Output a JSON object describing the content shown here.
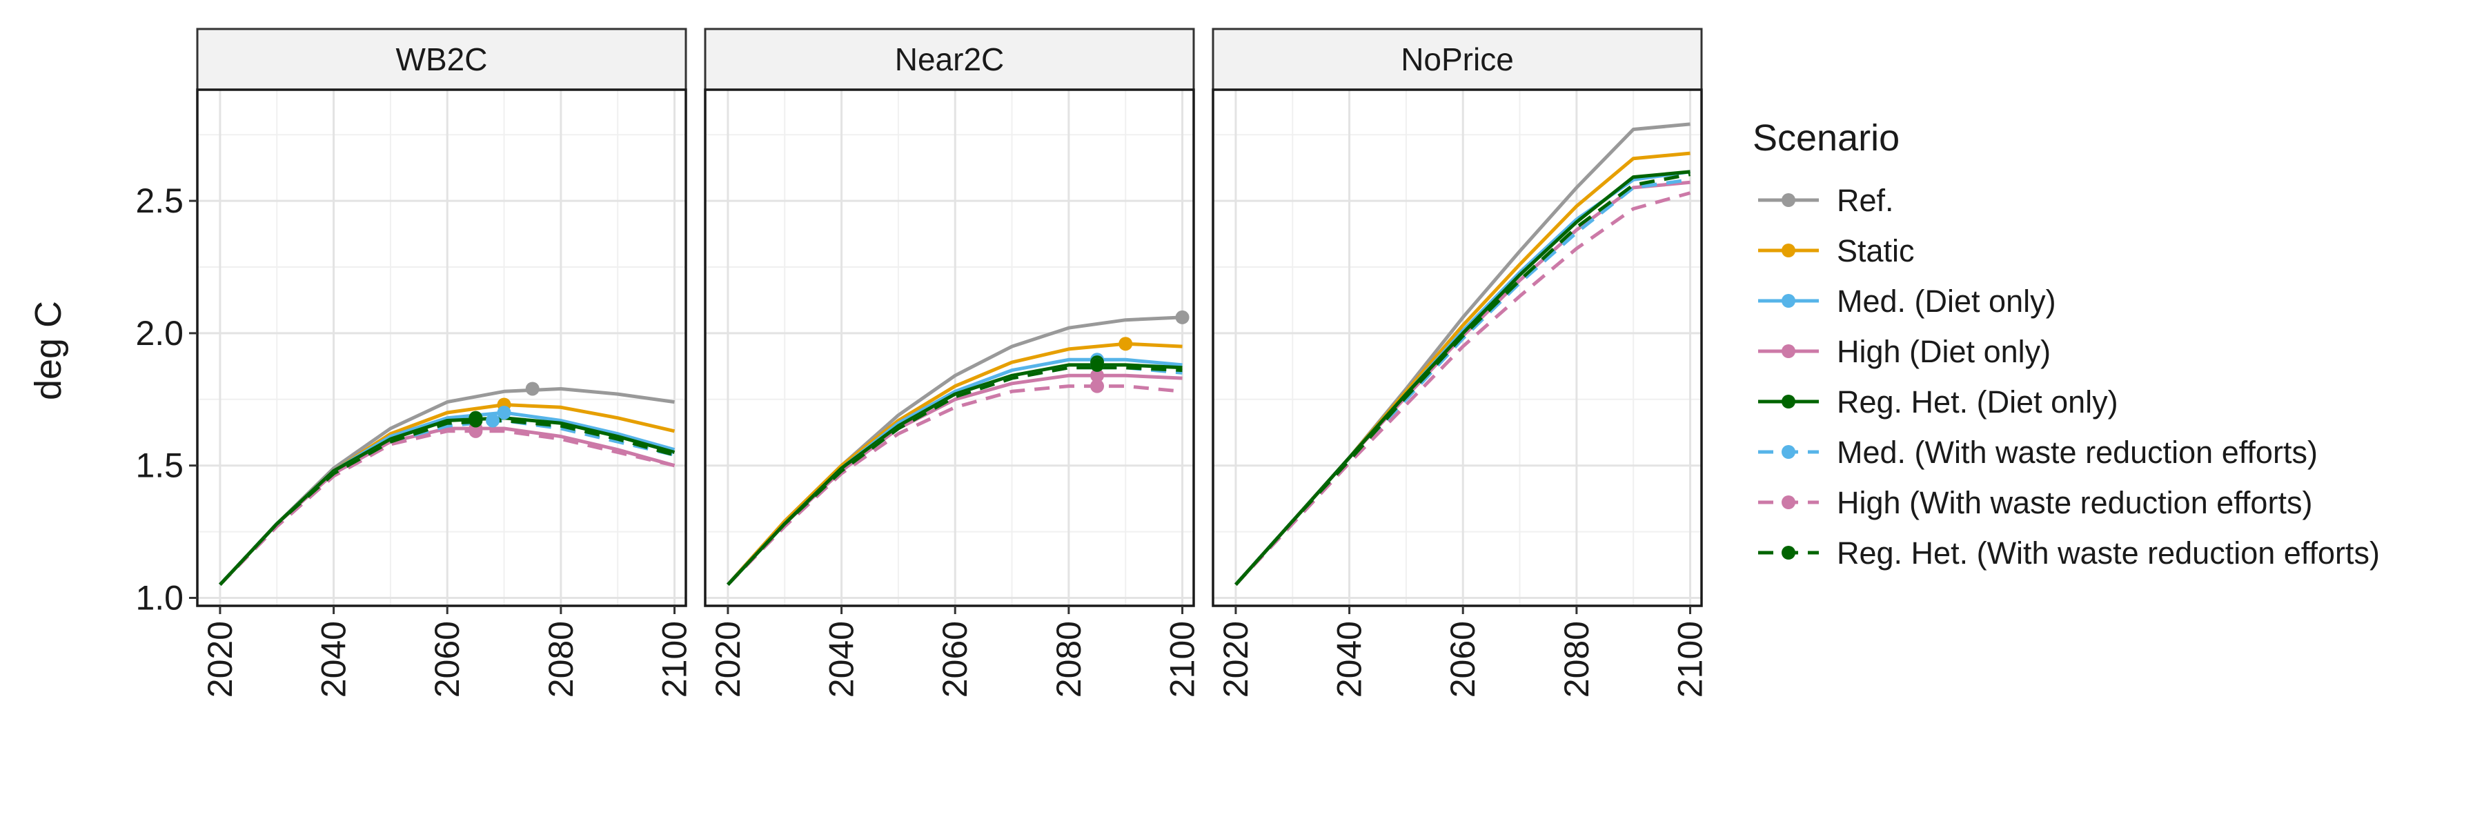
{
  "chart_data": {
    "type": "line",
    "ylabel": "deg C",
    "xlim": [
      2016,
      2102
    ],
    "ylim": [
      0.97,
      2.92
    ],
    "x_ticks": [
      2020,
      2040,
      2060,
      2080,
      2100
    ],
    "y_ticks": [
      1.0,
      1.5,
      2.0,
      2.5
    ],
    "y_tick_labels": [
      "1.0",
      "1.5",
      "2.0",
      "2.5"
    ],
    "grid": true,
    "legend": {
      "title": "Scenario",
      "position": "right",
      "entries": [
        {
          "label": "Ref.",
          "color": "#999999",
          "dash": "solid"
        },
        {
          "label": "Static",
          "color": "#E69F00",
          "dash": "solid"
        },
        {
          "label": "Med. (Diet only)",
          "color": "#56B4E9",
          "dash": "solid"
        },
        {
          "label": "High (Diet only)",
          "color": "#CC79A7",
          "dash": "solid"
        },
        {
          "label": "Reg. Het. (Diet only)",
          "color": "#006400",
          "dash": "solid"
        },
        {
          "label": "Med. (With waste reduction efforts)",
          "color": "#56B4E9",
          "dash": "dashed"
        },
        {
          "label": "High (With waste reduction efforts)",
          "color": "#CC79A7",
          "dash": "dashed"
        },
        {
          "label": "Reg. Het. (With waste reduction efforts)",
          "color": "#006400",
          "dash": "dashed"
        }
      ]
    },
    "x": [
      2020,
      2030,
      2040,
      2050,
      2060,
      2070,
      2080,
      2090,
      2100
    ],
    "panels": [
      {
        "name": "WB2C",
        "series": [
          {
            "name": "Ref.",
            "values": [
              1.05,
              1.28,
              1.49,
              1.64,
              1.74,
              1.78,
              1.79,
              1.77,
              1.74
            ],
            "peak": [
              2075,
              1.79
            ]
          },
          {
            "name": "Static",
            "values": [
              1.05,
              1.28,
              1.48,
              1.62,
              1.7,
              1.73,
              1.72,
              1.68,
              1.63
            ],
            "peak": [
              2070,
              1.73
            ]
          },
          {
            "name": "Med. (Diet only)",
            "values": [
              1.05,
              1.28,
              1.48,
              1.61,
              1.68,
              1.7,
              1.67,
              1.62,
              1.56
            ],
            "peak": [
              2070,
              1.7
            ]
          },
          {
            "name": "High (Diet only)",
            "values": [
              1.05,
              1.28,
              1.47,
              1.59,
              1.64,
              1.64,
              1.61,
              1.56,
              1.5
            ],
            "peak": [
              2065,
              1.64
            ]
          },
          {
            "name": "Reg. Het. (Diet only)",
            "values": [
              1.05,
              1.28,
              1.48,
              1.6,
              1.67,
              1.68,
              1.66,
              1.61,
              1.55
            ],
            "peak": [
              2065,
              1.68
            ]
          },
          {
            "name": "Med. (With waste reduction efforts)",
            "values": [
              1.05,
              1.28,
              1.47,
              1.59,
              1.65,
              1.67,
              1.64,
              1.59,
              1.54
            ],
            "peak": [
              2068,
              1.67
            ]
          },
          {
            "name": "High (With waste reduction efforts)",
            "values": [
              1.05,
              1.27,
              1.46,
              1.58,
              1.63,
              1.63,
              1.6,
              1.55,
              1.5
            ],
            "peak": [
              2065,
              1.63
            ]
          },
          {
            "name": "Reg. Het. (With waste reduction efforts)",
            "values": [
              1.05,
              1.28,
              1.47,
              1.59,
              1.66,
              1.67,
              1.65,
              1.6,
              1.54
            ],
            "peak": [
              2065,
              1.67
            ]
          }
        ]
      },
      {
        "name": "Near2C",
        "series": [
          {
            "name": "Ref.",
            "values": [
              1.05,
              1.29,
              1.5,
              1.69,
              1.84,
              1.95,
              2.02,
              2.05,
              2.06
            ],
            "peak": [
              2100,
              2.06
            ]
          },
          {
            "name": "Static",
            "values": [
              1.05,
              1.29,
              1.5,
              1.67,
              1.8,
              1.89,
              1.94,
              1.96,
              1.95
            ],
            "peak": [
              2090,
              1.96
            ]
          },
          {
            "name": "Med. (Diet only)",
            "values": [
              1.05,
              1.28,
              1.49,
              1.66,
              1.78,
              1.86,
              1.9,
              1.9,
              1.88
            ],
            "peak": [
              2085,
              1.9
            ]
          },
          {
            "name": "High (Diet only)",
            "values": [
              1.05,
              1.28,
              1.48,
              1.64,
              1.75,
              1.81,
              1.84,
              1.84,
              1.83
            ],
            "peak": [
              2085,
              1.84
            ]
          },
          {
            "name": "Reg. Het. (Diet only)",
            "values": [
              1.05,
              1.28,
              1.49,
              1.65,
              1.77,
              1.84,
              1.88,
              1.88,
              1.87
            ],
            "peak": [
              2085,
              1.89
            ]
          },
          {
            "name": "Med. (With waste reduction efforts)",
            "values": [
              1.05,
              1.28,
              1.48,
              1.64,
              1.76,
              1.83,
              1.87,
              1.87,
              1.85
            ],
            "peak": [
              2085,
              1.88
            ]
          },
          {
            "name": "High (With waste reduction efforts)",
            "values": [
              1.05,
              1.27,
              1.47,
              1.62,
              1.72,
              1.78,
              1.8,
              1.8,
              1.78
            ],
            "peak": [
              2085,
              1.8
            ]
          },
          {
            "name": "Reg. Het. (With waste reduction efforts)",
            "values": [
              1.05,
              1.28,
              1.48,
              1.64,
              1.76,
              1.83,
              1.87,
              1.87,
              1.86
            ],
            "peak": [
              2085,
              1.88
            ]
          }
        ]
      },
      {
        "name": "NoPrice",
        "series": [
          {
            "name": "Ref.",
            "values": [
              1.05,
              1.29,
              1.53,
              1.79,
              2.06,
              2.31,
              2.55,
              2.77,
              2.79
            ]
          },
          {
            "name": "Static",
            "values": [
              1.05,
              1.29,
              1.53,
              1.78,
              2.03,
              2.26,
              2.48,
              2.66,
              2.68
            ]
          },
          {
            "name": "Med. (Diet only)",
            "values": [
              1.05,
              1.29,
              1.53,
              1.77,
              2.01,
              2.23,
              2.43,
              2.58,
              2.61
            ]
          },
          {
            "name": "High (Diet only)",
            "values": [
              1.05,
              1.29,
              1.53,
              1.76,
              1.99,
              2.2,
              2.39,
              2.55,
              2.57
            ]
          },
          {
            "name": "Reg. Het. (Diet only)",
            "values": [
              1.05,
              1.29,
              1.53,
              1.77,
              2.0,
              2.22,
              2.42,
              2.59,
              2.61
            ]
          },
          {
            "name": "Med. (With waste reduction efforts)",
            "values": [
              1.05,
              1.29,
              1.52,
              1.75,
              1.98,
              2.19,
              2.38,
              2.55,
              2.58
            ]
          },
          {
            "name": "High (With waste reduction efforts)",
            "values": [
              1.05,
              1.28,
              1.51,
              1.73,
              1.95,
              2.14,
              2.32,
              2.47,
              2.53
            ]
          },
          {
            "name": "Reg. Het. (With waste reduction efforts)",
            "values": [
              1.05,
              1.29,
              1.52,
              1.76,
              1.99,
              2.2,
              2.4,
              2.56,
              2.6
            ]
          }
        ]
      }
    ]
  }
}
